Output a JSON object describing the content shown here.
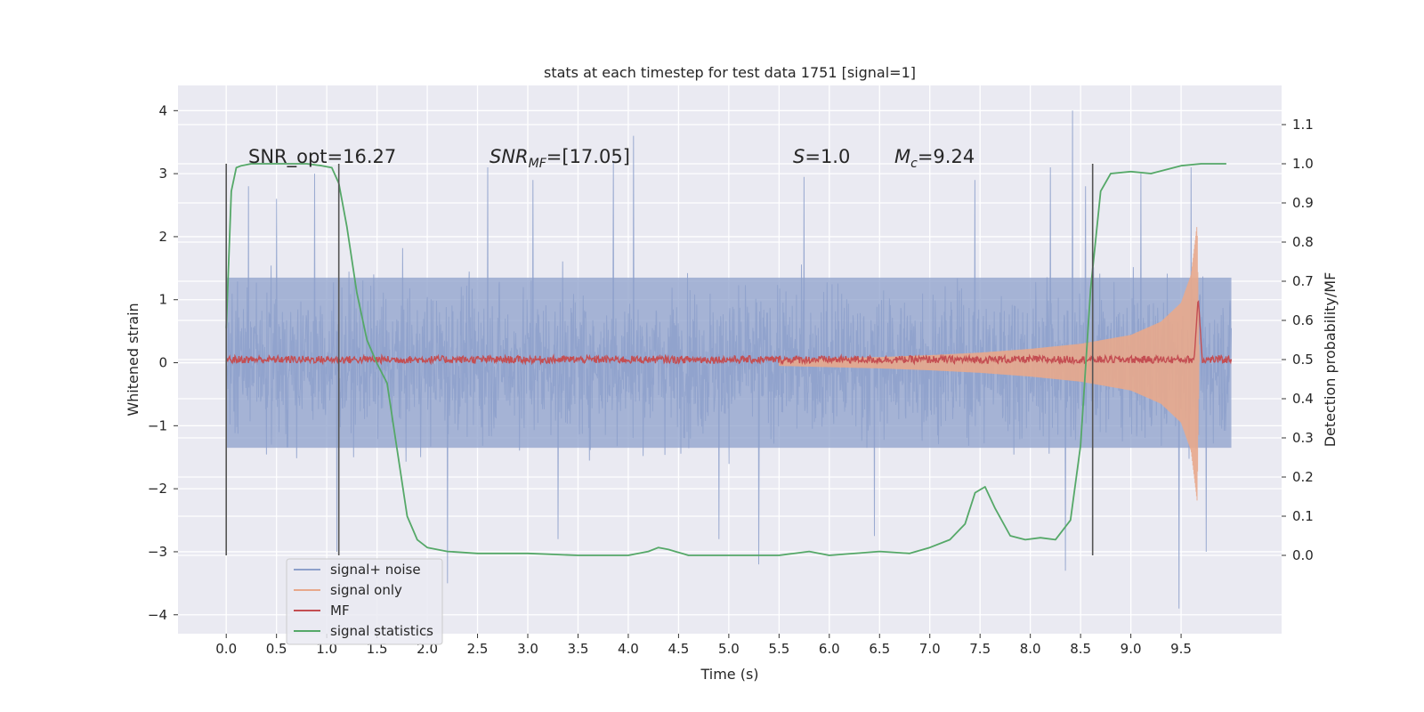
{
  "chart_data": {
    "type": "line",
    "title": "stats at each timestep for test data 1751 [signal=1]",
    "xlabel": "Time (s)",
    "ylabel": "Whitened strain",
    "y2label": "Detection probability/MF",
    "xlim": [
      -0.48,
      10.5
    ],
    "ylim": [
      -4.3,
      4.4
    ],
    "y2lim": [
      -0.2,
      1.2
    ],
    "xticks": [
      "0.0",
      "0.5",
      "1.0",
      "1.5",
      "2.0",
      "2.5",
      "3.0",
      "3.5",
      "4.0",
      "4.5",
      "5.0",
      "5.5",
      "6.0",
      "6.5",
      "7.0",
      "7.5",
      "8.0",
      "8.5",
      "9.0",
      "9.5"
    ],
    "yticks": [
      "4",
      "3",
      "2",
      "1",
      "0",
      "−1",
      "−2",
      "−3",
      "−4"
    ],
    "y2ticks": [
      "1.1",
      "1.0",
      "0.9",
      "0.8",
      "0.7",
      "0.6",
      "0.5",
      "0.4",
      "0.3",
      "0.2",
      "0.1",
      "0.0"
    ],
    "grid": true,
    "legend_placement": "lower-left",
    "annotations": {
      "snr_opt": "SNR_opt=16.27",
      "snr_mf_name": "SNR",
      "snr_mf_sub": "MF",
      "snr_mf_value": "=[17.05]",
      "s_name": "S",
      "s_value": "=1.0",
      "mc_name": "M",
      "mc_sub": "c",
      "mc_value": "=9.24"
    },
    "vlines": [
      0.0,
      1.12,
      8.62
    ],
    "series": [
      {
        "name": "signal+ noise",
        "color": "#8da0cb",
        "axis": "left",
        "note": "whitened noisy strain, 0 to 10 s",
        "peaks": [
          [
            0.22,
            2.8
          ],
          [
            0.5,
            2.6
          ],
          [
            0.88,
            3.0
          ],
          [
            1.1,
            -3.0
          ],
          [
            2.2,
            -3.5
          ],
          [
            2.6,
            3.1
          ],
          [
            3.05,
            2.9
          ],
          [
            3.3,
            -2.8
          ],
          [
            3.85,
            3.2
          ],
          [
            4.05,
            3.6
          ],
          [
            4.9,
            -2.8
          ],
          [
            5.3,
            -3.2
          ],
          [
            5.75,
            2.95
          ],
          [
            6.45,
            -2.75
          ],
          [
            7.45,
            2.9
          ],
          [
            8.2,
            3.1
          ],
          [
            8.35,
            -3.3
          ],
          [
            8.42,
            4.0
          ],
          [
            8.55,
            2.8
          ],
          [
            9.1,
            3.0
          ],
          [
            9.48,
            -3.9
          ],
          [
            9.6,
            3.1
          ],
          [
            9.75,
            -3.0
          ]
        ],
        "band": 1.35
      },
      {
        "name": "signal only",
        "color": "#e8a88c",
        "axis": "left",
        "note": "chirp whose amplitude grows toward merger at ~9.67 s",
        "envelope": [
          [
            5.5,
            0.05
          ],
          [
            6.0,
            0.07
          ],
          [
            6.5,
            0.09
          ],
          [
            7.0,
            0.12
          ],
          [
            7.5,
            0.16
          ],
          [
            8.0,
            0.22
          ],
          [
            8.5,
            0.3
          ],
          [
            9.0,
            0.44
          ],
          [
            9.3,
            0.65
          ],
          [
            9.5,
            0.95
          ],
          [
            9.6,
            1.4
          ],
          [
            9.66,
            2.2
          ],
          [
            9.68,
            0.0
          ]
        ]
      },
      {
        "name": "MF",
        "color": "#c44e52",
        "axis": "left",
        "note": "matched-filter output near zero with a peak at ~9.67 s",
        "baseline": 0.05,
        "peak": [
          9.67,
          1.0
        ]
      },
      {
        "name": "signal statistics",
        "color": "#55a868",
        "axis": "right",
        "x": [
          0.0,
          0.05,
          0.1,
          0.15,
          0.25,
          0.4,
          0.6,
          0.8,
          0.95,
          1.05,
          1.12,
          1.2,
          1.3,
          1.4,
          1.5,
          1.6,
          1.7,
          1.8,
          1.9,
          2.0,
          2.2,
          2.5,
          3.0,
          3.5,
          4.0,
          4.2,
          4.3,
          4.4,
          4.6,
          5.0,
          5.5,
          5.8,
          6.0,
          6.5,
          6.8,
          7.0,
          7.2,
          7.35,
          7.45,
          7.55,
          7.65,
          7.8,
          7.95,
          8.1,
          8.25,
          8.4,
          8.5,
          8.6,
          8.7,
          8.8,
          9.0,
          9.2,
          9.5,
          9.7,
          9.95
        ],
        "values": [
          0.58,
          0.93,
          0.99,
          0.995,
          1.0,
          1.0,
          1.0,
          1.0,
          0.995,
          0.99,
          0.95,
          0.84,
          0.67,
          0.55,
          0.49,
          0.44,
          0.27,
          0.1,
          0.04,
          0.02,
          0.01,
          0.005,
          0.005,
          0.0,
          0.0,
          0.01,
          0.02,
          0.015,
          0.0,
          0.0,
          0.0,
          0.01,
          0.0,
          0.01,
          0.005,
          0.02,
          0.04,
          0.08,
          0.16,
          0.175,
          0.12,
          0.05,
          0.04,
          0.045,
          0.04,
          0.09,
          0.28,
          0.68,
          0.93,
          0.975,
          0.98,
          0.975,
          0.995,
          1.0,
          1.0
        ]
      }
    ]
  }
}
